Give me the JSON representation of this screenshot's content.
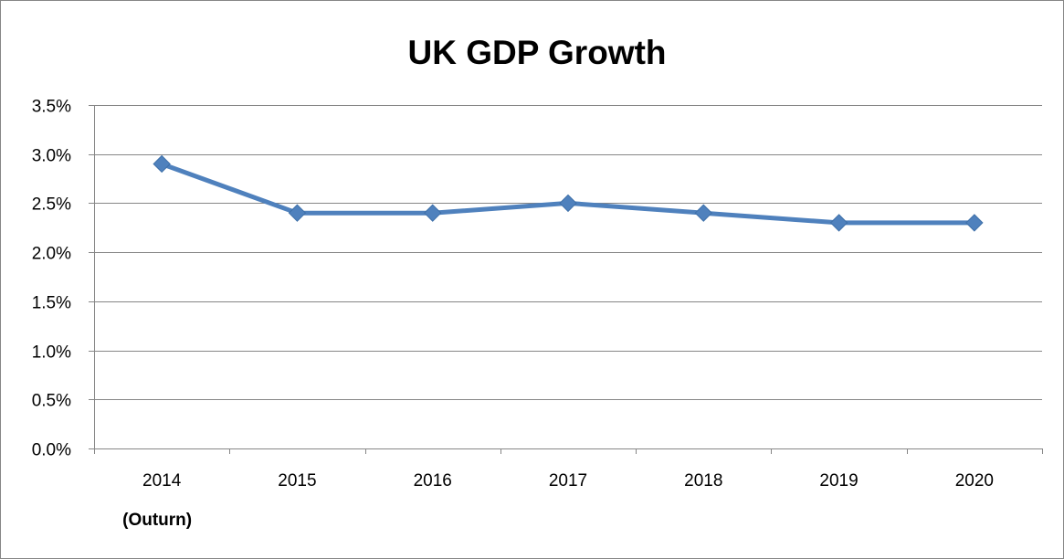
{
  "chart_data": {
    "type": "line",
    "title": "UK GDP Growth",
    "xlabel": "",
    "ylabel": "",
    "categories": [
      "2014",
      "2015",
      "2016",
      "2017",
      "2018",
      "2019",
      "2020"
    ],
    "category_sublabels": [
      "(Outurn)",
      "",
      "",
      "",
      "",
      "",
      ""
    ],
    "series": [
      {
        "values": [
          2.9,
          2.4,
          2.4,
          2.5,
          2.4,
          2.3,
          2.3
        ]
      }
    ],
    "ylim": [
      0,
      3.5
    ],
    "y_ticks": [
      "0.0%",
      "0.5%",
      "1.0%",
      "1.5%",
      "2.0%",
      "2.5%",
      "3.0%",
      "3.5%"
    ],
    "y_tick_values": [
      0,
      0.5,
      1.0,
      1.5,
      2.0,
      2.5,
      3.0,
      3.5
    ],
    "grid": true,
    "legend": "none",
    "marker": "diamond",
    "colors": {
      "series": "#4f81bd",
      "grid": "#868686",
      "axis": "#868686"
    }
  }
}
